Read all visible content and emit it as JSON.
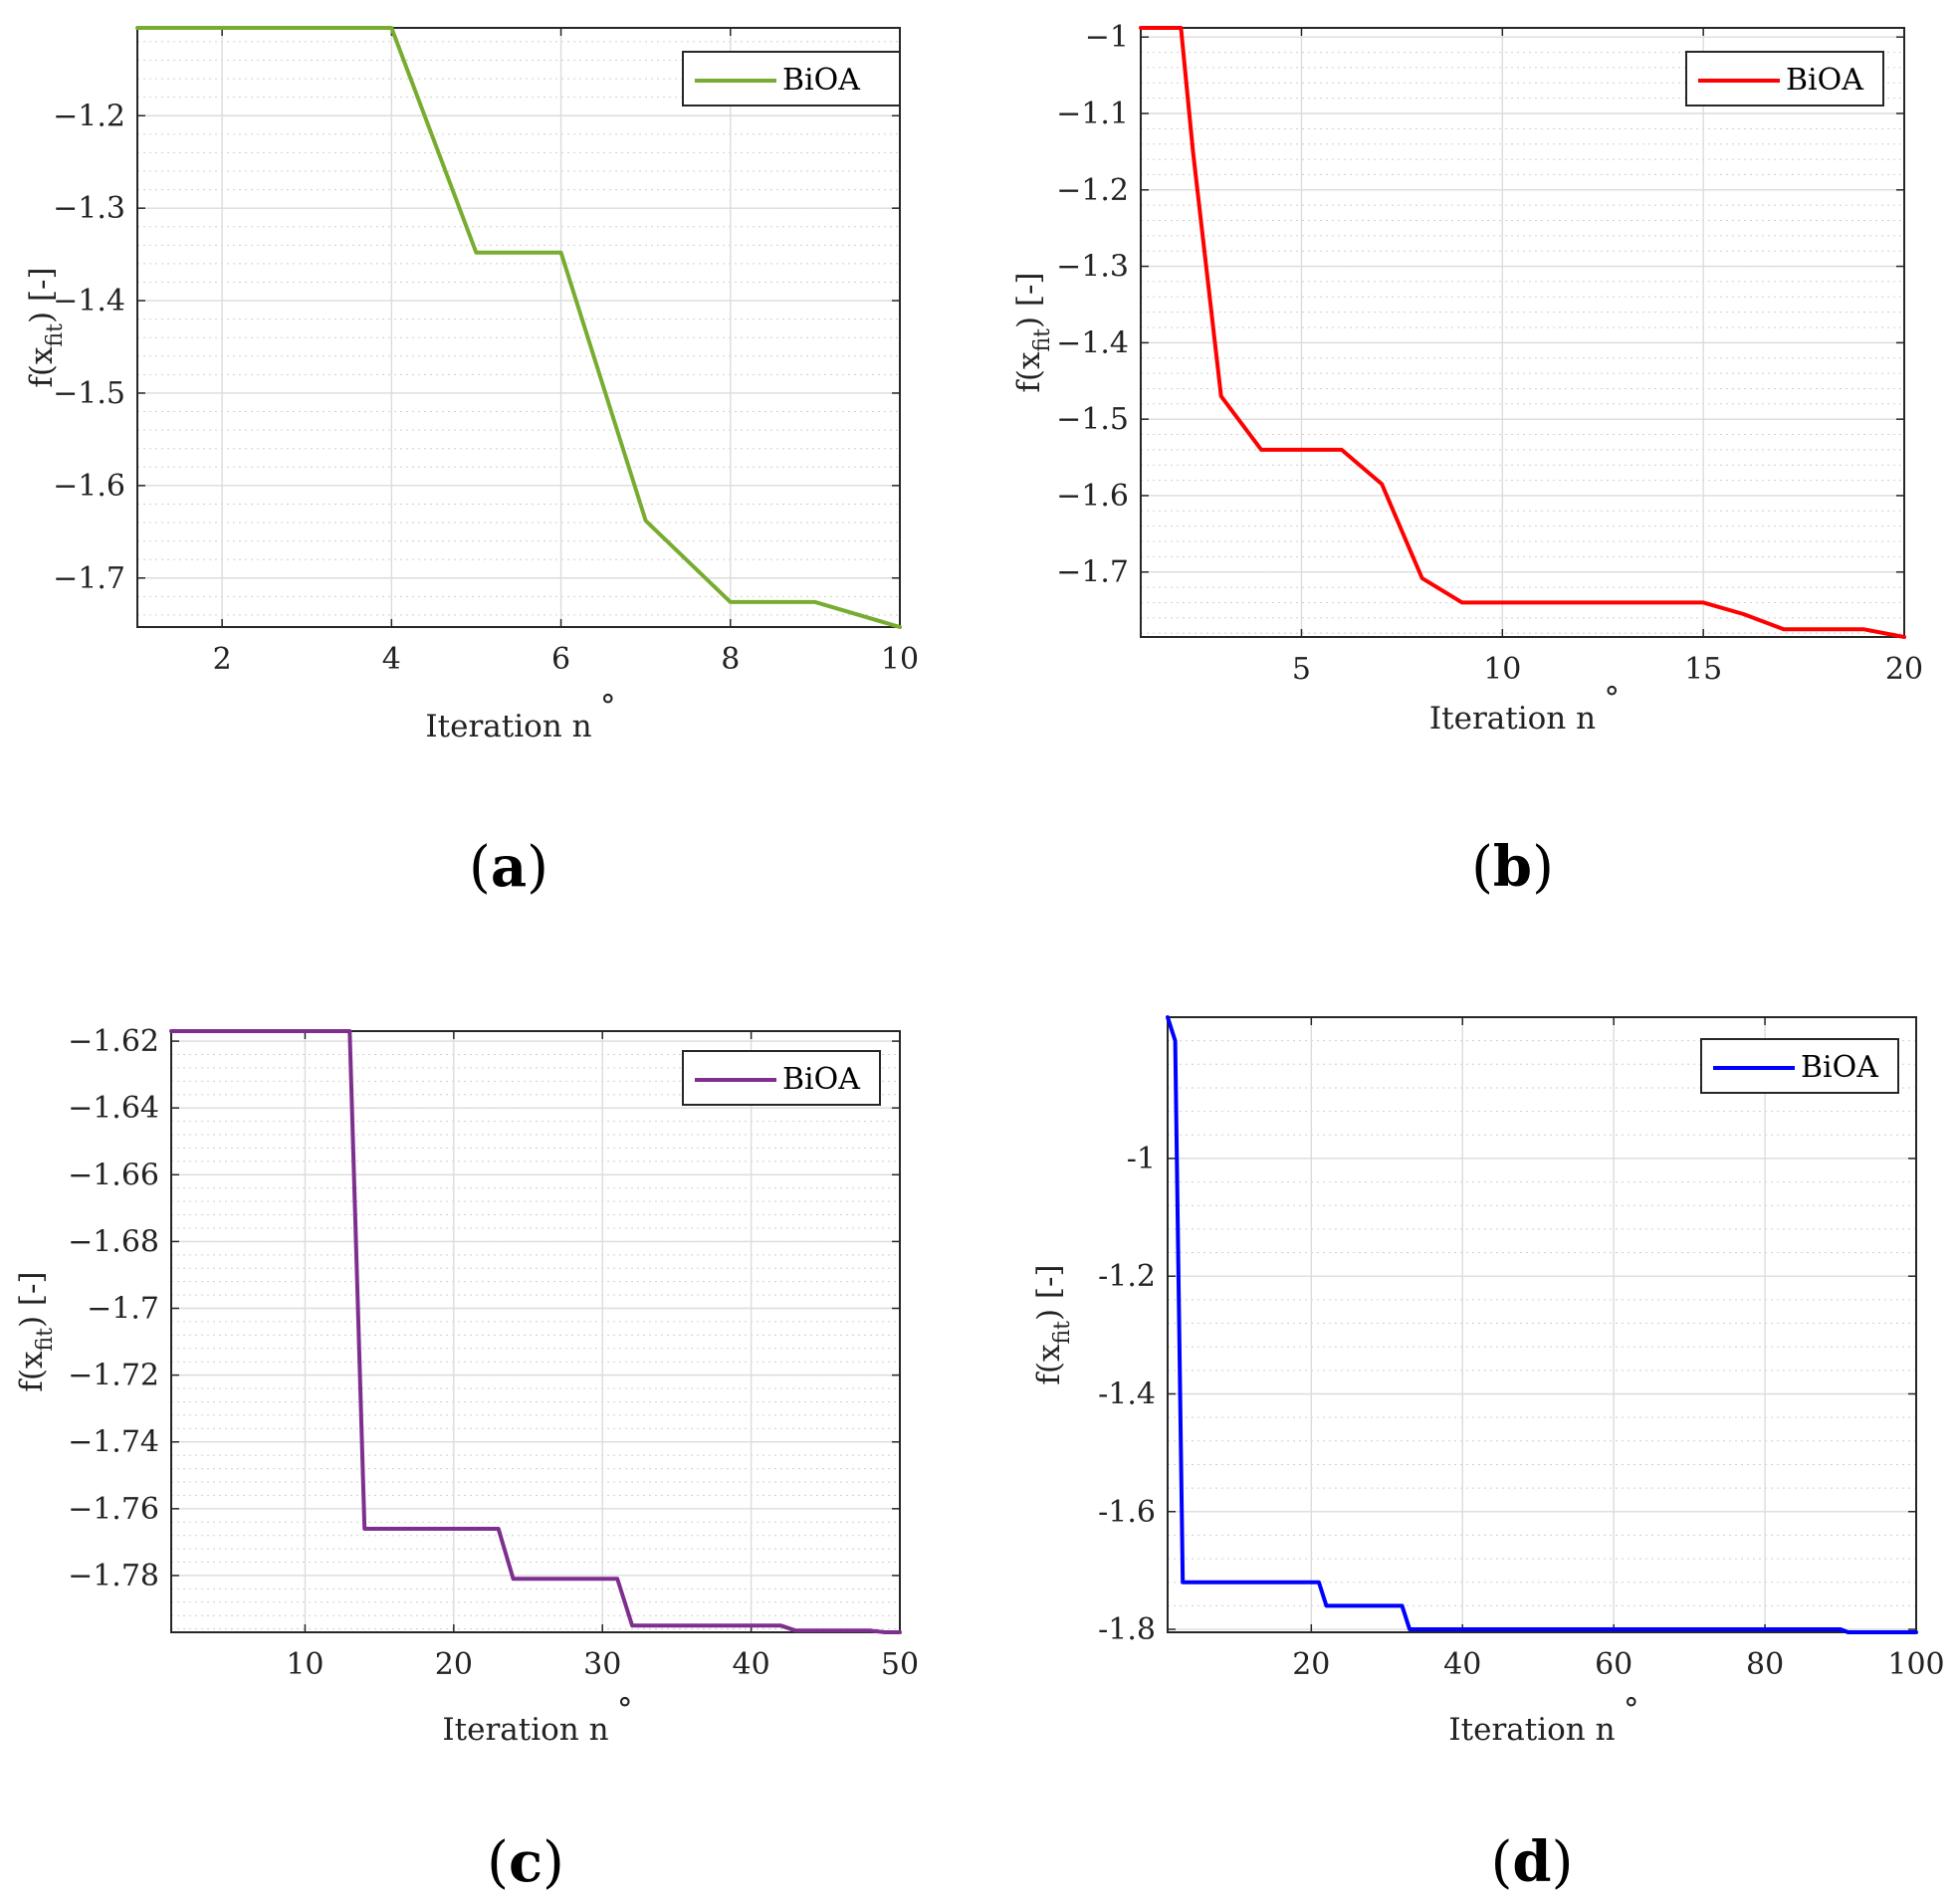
{
  "chart_data": [
    {
      "id": "a",
      "type": "line",
      "panel_label": "a",
      "xlabel": "Iteration n",
      "xlabel_sup": "°",
      "ylabel_pre": "f(x",
      "ylabel_sub": "fit",
      "ylabel_post": ") [-]",
      "xlim": [
        1,
        10
      ],
      "ylim": [
        -1.753,
        -1.105
      ],
      "xticks": [
        2,
        4,
        6,
        8,
        10
      ],
      "xtick_labels": [
        "2",
        "4",
        "6",
        "8",
        "10"
      ],
      "yticks": [
        -1.2,
        -1.3,
        -1.4,
        -1.5,
        -1.6,
        -1.7
      ],
      "ytick_labels": [
        "−1.2",
        "−1.3",
        "−1.4",
        "−1.5",
        "−1.6",
        "−1.7"
      ],
      "legend": "top-right",
      "series": [
        {
          "name": "BiOA",
          "color": "#77ac30",
          "x": [
            1,
            2,
            3,
            4,
            5,
            6,
            7,
            8,
            9,
            10
          ],
          "y": [
            -1.105,
            -1.105,
            -1.105,
            -1.105,
            -1.348,
            -1.348,
            -1.638,
            -1.726,
            -1.726,
            -1.753
          ]
        }
      ]
    },
    {
      "id": "b",
      "type": "line",
      "panel_label": "b",
      "xlabel": "Iteration n",
      "xlabel_sup": "°",
      "ylabel_pre": "f(x",
      "ylabel_sub": "fit",
      "ylabel_post": ") [-]",
      "xlim": [
        1,
        20
      ],
      "ylim": [
        -1.785,
        -0.988
      ],
      "xticks": [
        5,
        10,
        15,
        20
      ],
      "xtick_labels": [
        "5",
        "10",
        "15",
        "20"
      ],
      "yticks": [
        -1.0,
        -1.1,
        -1.2,
        -1.3,
        -1.4,
        -1.5,
        -1.6,
        -1.7
      ],
      "ytick_labels": [
        "−1",
        "−1.1",
        "−1.2",
        "−1.3",
        "−1.4",
        "−1.5",
        "−1.6",
        "−1.7"
      ],
      "legend": "top-right",
      "series": [
        {
          "name": "BiOA",
          "color": "#ff0000",
          "x": [
            1,
            2,
            2.3,
            3,
            4,
            5,
            6,
            7,
            8,
            9,
            10,
            11,
            12,
            13,
            14,
            15,
            16,
            17,
            18,
            19,
            20
          ],
          "y": [
            -0.988,
            -0.988,
            -1.15,
            -1.47,
            -1.54,
            -1.54,
            -1.54,
            -1.585,
            -1.708,
            -1.74,
            -1.74,
            -1.74,
            -1.74,
            -1.74,
            -1.74,
            -1.74,
            -1.755,
            -1.775,
            -1.775,
            -1.775,
            -1.785
          ]
        }
      ]
    },
    {
      "id": "c",
      "type": "line",
      "panel_label": "c",
      "xlabel": "Iteration n",
      "xlabel_sup": "°",
      "ylabel_pre": "f(x",
      "ylabel_sub": "fit",
      "ylabel_post": ") [-]",
      "xlim": [
        1,
        50
      ],
      "ylim": [
        -1.797,
        -1.617
      ],
      "xticks": [
        10,
        20,
        30,
        40,
        50
      ],
      "xtick_labels": [
        "10",
        "20",
        "30",
        "40",
        "50"
      ],
      "yticks": [
        -1.62,
        -1.64,
        -1.66,
        -1.68,
        -1.7,
        -1.72,
        -1.74,
        -1.76,
        -1.78
      ],
      "ytick_labels": [
        "−1.62",
        "−1.64",
        "−1.66",
        "−1.68",
        "−1.7",
        "−1.72",
        "−1.74",
        "−1.76",
        "−1.78"
      ],
      "legend": "top-right",
      "series": [
        {
          "name": "BiOA",
          "color": "#7e2f8e",
          "x": [
            1,
            13,
            14,
            23,
            24,
            31,
            32,
            42,
            43,
            48,
            49,
            50
          ],
          "y": [
            -1.617,
            -1.617,
            -1.766,
            -1.766,
            -1.781,
            -1.781,
            -1.795,
            -1.795,
            -1.7965,
            -1.7965,
            -1.797,
            -1.797
          ]
        }
      ]
    },
    {
      "id": "d",
      "type": "line",
      "panel_label": "d",
      "xlabel": "Iteration n",
      "xlabel_sup": "°",
      "ylabel_pre": "f(x",
      "ylabel_sub": "fit",
      "ylabel_post": ") [-]",
      "xlim": [
        1,
        100
      ],
      "ylim": [
        -1.805,
        -0.76
      ],
      "xticks": [
        20,
        40,
        60,
        80,
        100
      ],
      "xtick_labels": [
        "20",
        "40",
        "60",
        "80",
        "100"
      ],
      "yticks": [
        -1.0,
        -1.2,
        -1.4,
        -1.6,
        -1.8
      ],
      "ytick_labels": [
        "-1",
        "-1.2",
        "-1.4",
        "-1.6",
        "-1.8"
      ],
      "legend": "top-right",
      "series": [
        {
          "name": "BiOA",
          "color": "#0000ff",
          "x": [
            1,
            2,
            3,
            21,
            22,
            32,
            33,
            90,
            91,
            100
          ],
          "y": [
            -0.76,
            -0.8,
            -1.72,
            -1.72,
            -1.76,
            -1.76,
            -1.8,
            -1.8,
            -1.805,
            -1.805
          ]
        }
      ]
    }
  ]
}
